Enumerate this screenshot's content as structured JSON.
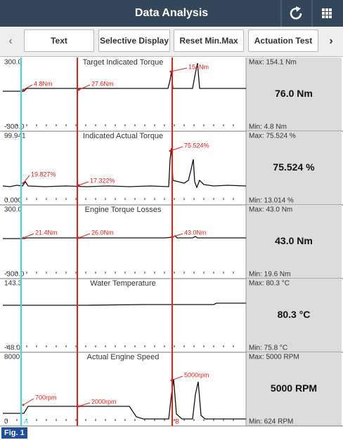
{
  "header": {
    "title": "Data Analysis"
  },
  "toolbar": {
    "buttons": [
      "Text",
      "Selective Display",
      "Reset Min.Max",
      "Actuation Test"
    ]
  },
  "panels": [
    {
      "name": "Target Indicated Torque",
      "axis_max": "300.0",
      "axis_min": "-300.0",
      "annotations": [
        "4.8Nm",
        "27.6Nm",
        "154Nm"
      ],
      "max": "Max: 154.1 Nm",
      "current": "76.0 Nm",
      "min": "Min: 4.8 Nm"
    },
    {
      "name": "Indicated Actual Torque",
      "axis_max": "99.941",
      "axis_min": "0.000",
      "annotations": [
        "19.827%",
        "17.322%",
        "75.524%"
      ],
      "max": "Max: 75.524 %",
      "current": "75.524 %",
      "min": "Min: 13.014 %"
    },
    {
      "name": "Engine Torque Losses",
      "axis_max": "300.0",
      "axis_min": "-300.0",
      "annotations": [
        "21.4Nm",
        "26.0Nm",
        "43.0Nm"
      ],
      "max": "Max: 43.0 Nm",
      "current": "43.0 Nm",
      "min": "Min: 19.6 Nm"
    },
    {
      "name": "Water Temperature",
      "axis_max": "143.3",
      "axis_min": "-48.0",
      "annotations": [],
      "max": "Max: 80.3 °C",
      "current": "80.3 °C",
      "min": "Min: 75.8 °C"
    },
    {
      "name": "Actual Engine Speed",
      "axis_max": "8000",
      "axis_min": "0",
      "annotations": [
        "700rpm",
        "2000rpm",
        "5000rpm"
      ],
      "max": "Max: 5000 RPM",
      "current": "5000 RPM",
      "min": "Min: 624 RPM"
    }
  ],
  "cursors": [
    "A",
    "B"
  ],
  "figure_label": "Fig. 1"
}
